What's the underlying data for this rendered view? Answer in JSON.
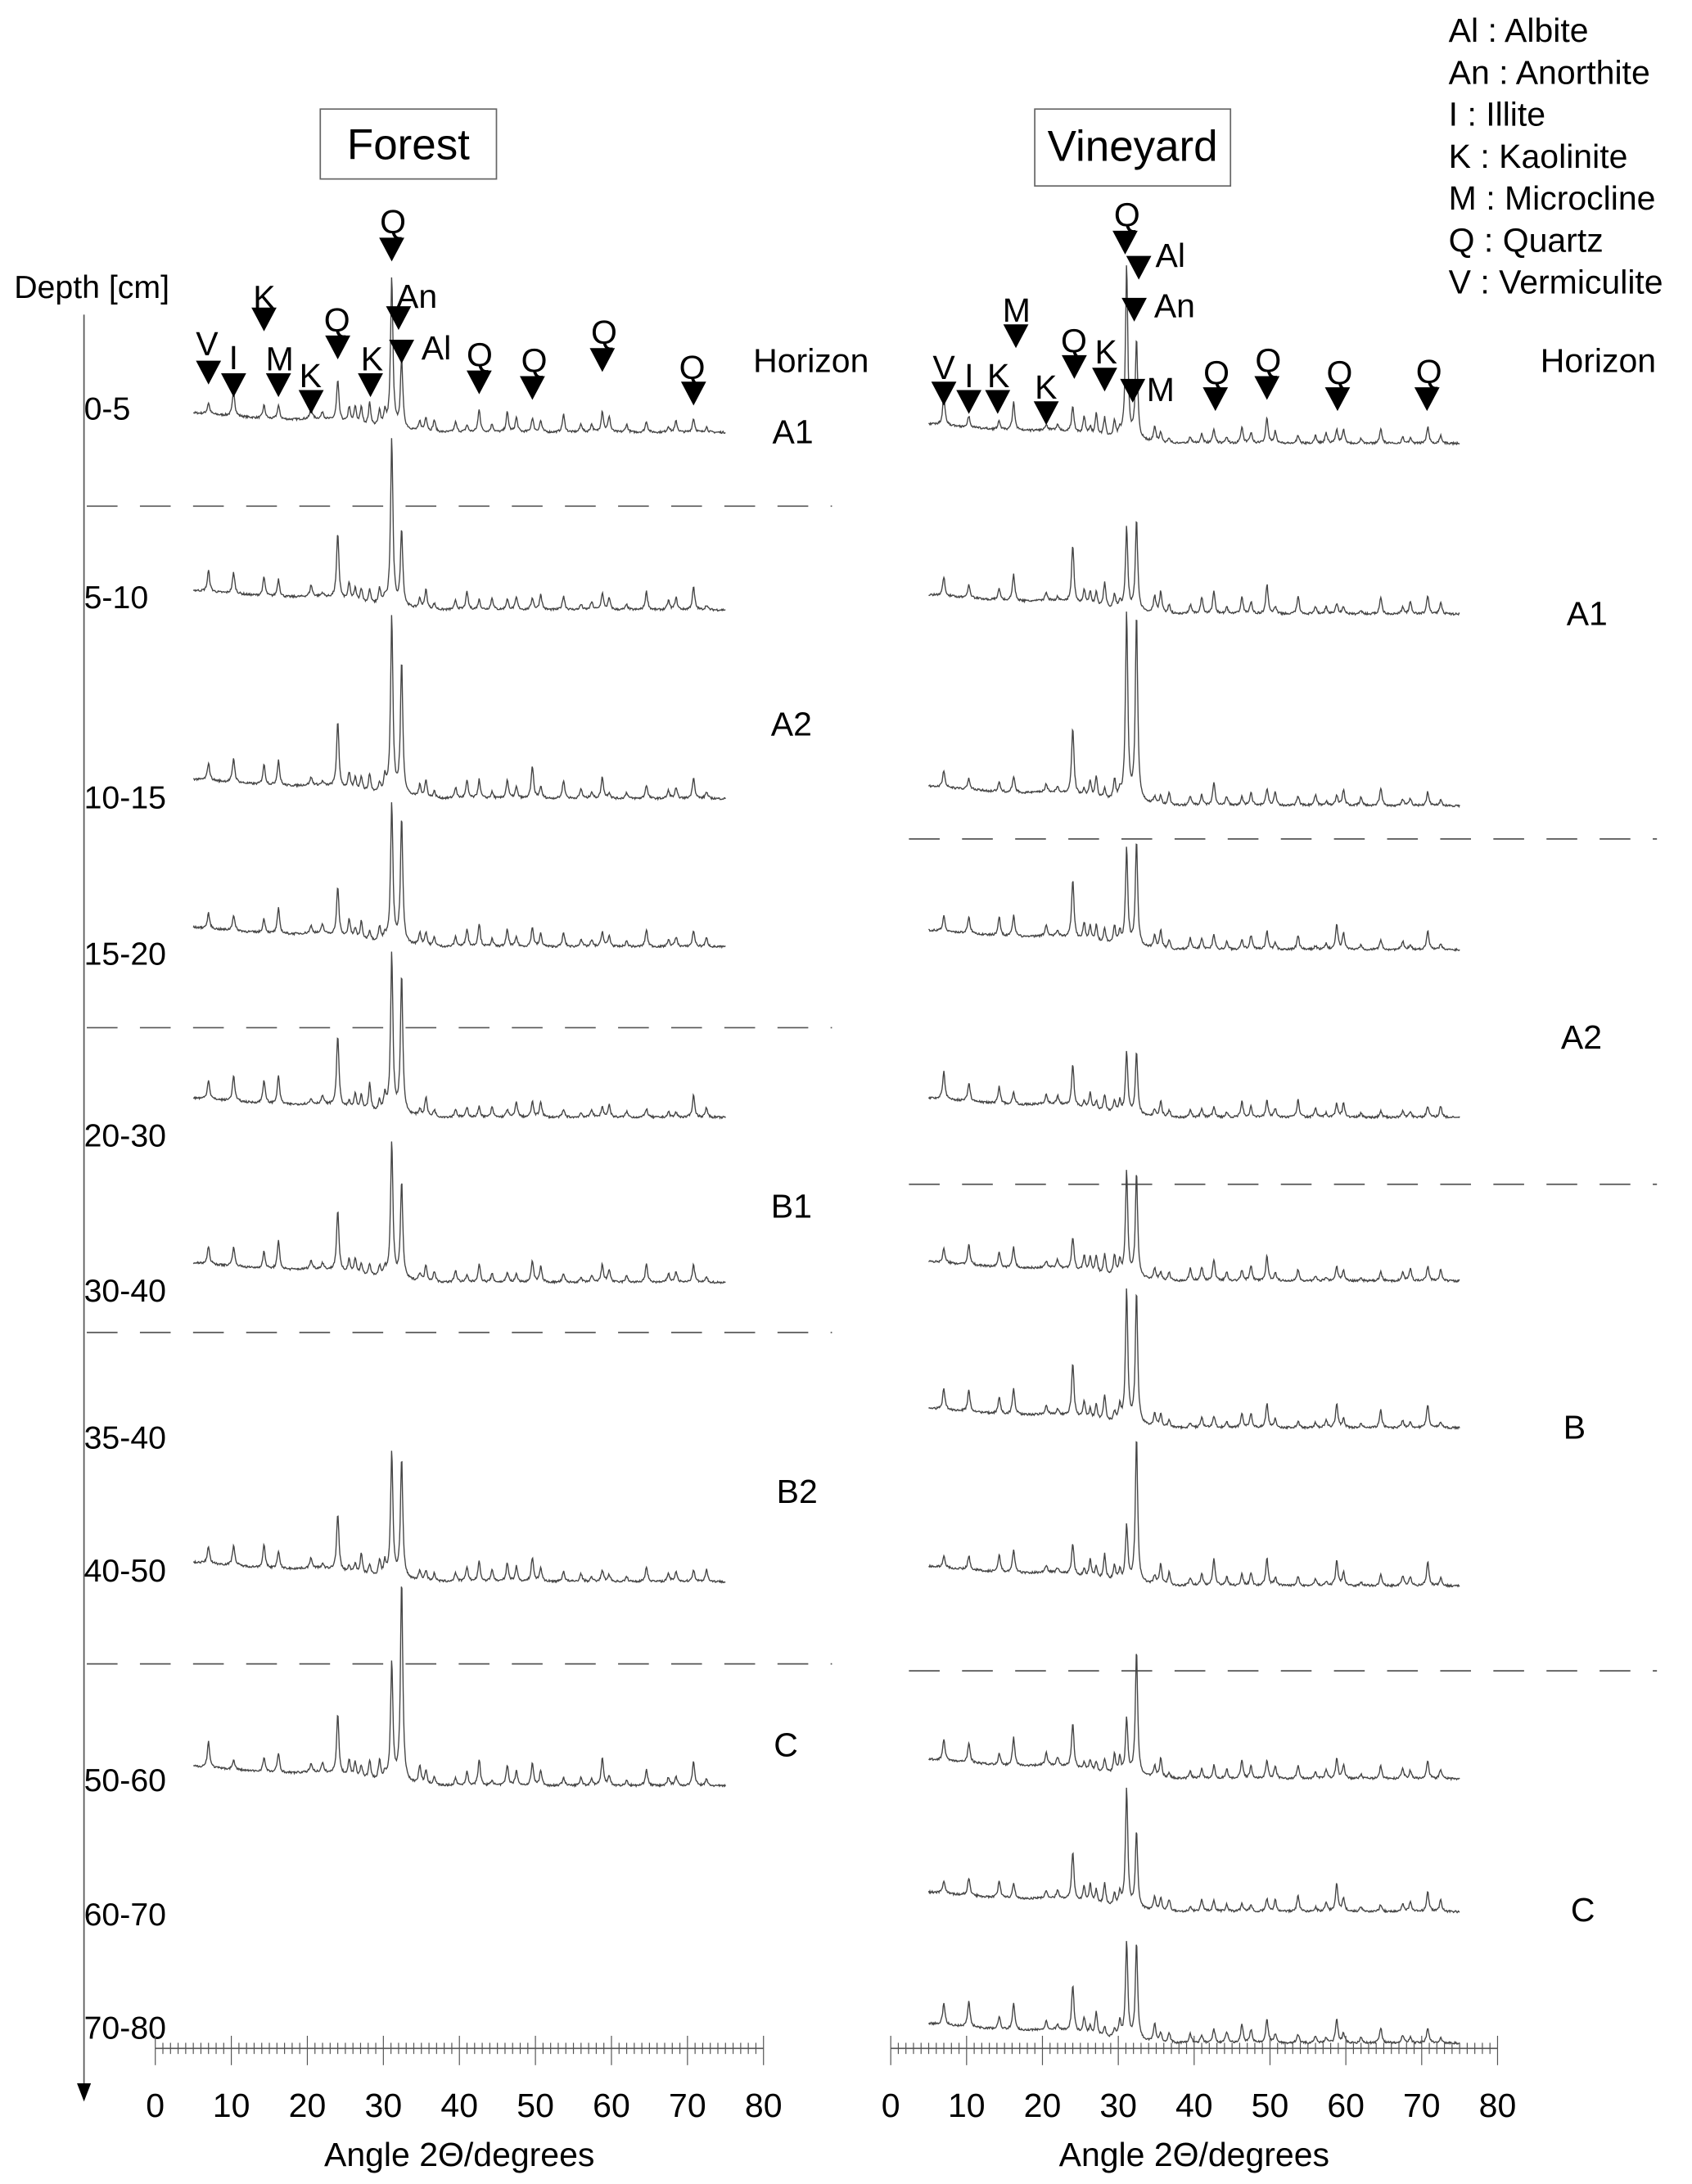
{
  "legend": [
    "Al : Albite",
    "An : Anorthite",
    "I : Illite",
    "K : Kaolinite",
    "M : Microcline",
    "Q : Quartz",
    "V : Vermiculite"
  ],
  "depth_axis_label": "Depth [cm]",
  "horizon_header": "Horizon",
  "chart_data": [
    {
      "type": "line",
      "title": "Forest",
      "xlabel": "Angle 2Θ/degrees",
      "xlim": [
        0,
        80
      ],
      "xticks": [
        "0",
        "10",
        "20",
        "30",
        "40",
        "50",
        "60",
        "70",
        "80"
      ],
      "x_range_measured": [
        5,
        75
      ],
      "depths": [
        "0-5",
        "5-10",
        "10-15",
        "15-20",
        "20-30",
        "30-40",
        "35-40",
        "40-50",
        "50-60",
        "60-70",
        "70-80"
      ],
      "traces": [
        {
          "depth": "0-5",
          "main_peaks_rel": [
            0.75,
            0.35
          ]
        },
        {
          "depth": "5-10",
          "main_peaks_rel": [
            0.83,
            0.38
          ]
        },
        {
          "depth": "10-15",
          "main_peaks_rel": [
            0.88,
            0.66
          ]
        },
        {
          "depth": "15-20",
          "main_peaks_rel": [
            0.69,
            0.62
          ]
        },
        {
          "depth": "20-30",
          "main_peaks_rel": [
            0.79,
            0.69
          ]
        },
        {
          "depth": "30-40",
          "main_peaks_rel": [
            0.68,
            0.48
          ]
        },
        {
          "depth": "40-50",
          "main_peaks_rel": [
            0.62,
            0.59
          ]
        },
        {
          "depth": "50-60",
          "main_peaks_rel": [
            0.59,
            1.0
          ]
        }
      ],
      "horizons": [
        "A1",
        "A2",
        "B1",
        "B2",
        "C"
      ],
      "peak_markers": [
        {
          "label": "V",
          "angle": 7
        },
        {
          "label": "I",
          "angle": 10.3
        },
        {
          "label": "K",
          "angle": 14.3
        },
        {
          "label": "M",
          "angle": 16.2
        },
        {
          "label": "K",
          "angle": 20.5
        },
        {
          "label": "Q",
          "angle": 24
        },
        {
          "label": "K",
          "angle": 28.3
        },
        {
          "label": "Q",
          "angle": 31.1
        },
        {
          "label": "An",
          "angle": 32
        },
        {
          "label": "Al",
          "angle": 32.4
        },
        {
          "label": "Q",
          "angle": 42.6
        },
        {
          "label": "Q",
          "angle": 49.6
        },
        {
          "label": "Q",
          "angle": 58.8
        },
        {
          "label": "Q",
          "angle": 70.8
        }
      ]
    },
    {
      "type": "line",
      "title": "Vineyard",
      "xlabel": "Angle 2Θ/degrees",
      "xlim": [
        0,
        80
      ],
      "xticks": [
        "0",
        "10",
        "20",
        "30",
        "40",
        "50",
        "60",
        "70",
        "80"
      ],
      "x_range_measured": [
        5,
        75
      ],
      "traces": [
        {
          "depth": "0-5",
          "main_peaks_rel": [
            0.86,
            0.5
          ]
        },
        {
          "depth": "5-10",
          "main_peaks_rel": [
            0.41,
            0.45
          ]
        },
        {
          "depth": "10-15",
          "main_peaks_rel": [
            0.93,
            0.93
          ]
        },
        {
          "depth": "15-20",
          "main_peaks_rel": [
            0.48,
            0.52
          ]
        },
        {
          "depth": "20-30",
          "main_peaks_rel": [
            0.31,
            0.31
          ]
        },
        {
          "depth": "30-40",
          "main_peaks_rel": [
            0.52,
            0.52
          ]
        },
        {
          "depth": "35-40",
          "main_peaks_rel": [
            0.66,
            0.66
          ]
        },
        {
          "depth": "40-50",
          "main_peaks_rel": [
            0.28,
            0.72
          ]
        },
        {
          "depth": "50-60",
          "main_peaks_rel": [
            0.28,
            0.62
          ]
        },
        {
          "depth": "60-70",
          "main_peaks_rel": [
            0.59,
            0.38
          ]
        },
        {
          "depth": "70-80",
          "main_peaks_rel": [
            0.48,
            0.48
          ]
        }
      ],
      "horizons": [
        "A1",
        "A2",
        "B",
        "C"
      ],
      "peak_markers": [
        {
          "label": "V",
          "angle": 7
        },
        {
          "label": "I",
          "angle": 10.3
        },
        {
          "label": "K",
          "angle": 14.1
        },
        {
          "label": "M",
          "angle": 16.5
        },
        {
          "label": "K",
          "angle": 20.5
        },
        {
          "label": "Q",
          "angle": 24.2
        },
        {
          "label": "K",
          "angle": 28.2
        },
        {
          "label": "Q",
          "angle": 30.9
        },
        {
          "label": "Al",
          "angle": 32.7
        },
        {
          "label": "An",
          "angle": 32.1
        },
        {
          "label": "M",
          "angle": 31.9
        },
        {
          "label": "Q",
          "angle": 42.8
        },
        {
          "label": "Q",
          "angle": 49.6
        },
        {
          "label": "Q",
          "angle": 58.9
        },
        {
          "label": "Q",
          "angle": 70.7
        }
      ]
    }
  ]
}
